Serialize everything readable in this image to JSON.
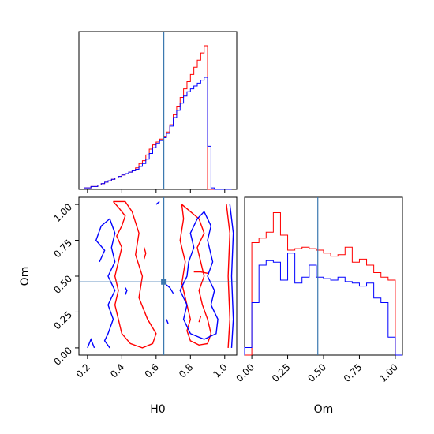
{
  "chart_data": [
    {
      "panel": "H0",
      "type": "step-histogram",
      "xlim": [
        0.15,
        1.07
      ],
      "bins": [
        0.18,
        0.2,
        0.22,
        0.24,
        0.26,
        0.28,
        0.3,
        0.32,
        0.34,
        0.36,
        0.38,
        0.4,
        0.42,
        0.44,
        0.46,
        0.48,
        0.5,
        0.52,
        0.54,
        0.56,
        0.58,
        0.6,
        0.62,
        0.64,
        0.66,
        0.68,
        0.7,
        0.72,
        0.74,
        0.76,
        0.78,
        0.8,
        0.82,
        0.84,
        0.86,
        0.88,
        0.9,
        0.92,
        0.94,
        0.96,
        0.98,
        1.0,
        1.02,
        1.04
      ],
      "series": [
        {
          "color": "#ff0000",
          "values": [
            0.01,
            0.01,
            0.02,
            0.02,
            0.03,
            0.04,
            0.05,
            0.06,
            0.07,
            0.08,
            0.09,
            0.1,
            0.11,
            0.12,
            0.13,
            0.15,
            0.18,
            0.2,
            0.24,
            0.28,
            0.31,
            0.33,
            0.35,
            0.37,
            0.4,
            0.45,
            0.52,
            0.58,
            0.64,
            0.7,
            0.75,
            0.8,
            0.85,
            0.9,
            0.95,
            1.0,
            0.0,
            0.0,
            0.0,
            0.0,
            0.0,
            0.0,
            0.0
          ]
        },
        {
          "color": "#0000ff",
          "values": [
            0.01,
            0.01,
            0.02,
            0.02,
            0.03,
            0.04,
            0.05,
            0.06,
            0.07,
            0.08,
            0.09,
            0.1,
            0.11,
            0.12,
            0.13,
            0.14,
            0.16,
            0.18,
            0.21,
            0.25,
            0.29,
            0.32,
            0.34,
            0.36,
            0.39,
            0.44,
            0.5,
            0.55,
            0.6,
            0.65,
            0.68,
            0.7,
            0.72,
            0.74,
            0.76,
            0.78,
            0.3,
            0.01,
            0.0,
            0.0,
            0.0,
            0.0,
            0.0
          ]
        }
      ],
      "truth": 0.645,
      "xticks": []
    },
    {
      "panel": "H0-Om",
      "type": "contour",
      "xlim": [
        0.15,
        1.07
      ],
      "ylim": [
        -0.05,
        1.05
      ],
      "xticks": [
        "0.2",
        "0.4",
        "0.6",
        "0.8",
        "1.0"
      ],
      "xtick_values": [
        0.2,
        0.4,
        0.6,
        0.8,
        1.0
      ],
      "yticks": [
        "0.00",
        "0.25",
        "0.50",
        "0.75",
        "1.00"
      ],
      "ytick_values": [
        0.0,
        0.25,
        0.5,
        0.75,
        1.0
      ],
      "xlabel": "H0",
      "ylabel": "Om",
      "truth": [
        0.645,
        0.46
      ],
      "series": [
        {
          "color": "#ff0000",
          "paths": [
            [
              [
                0.35,
                1.02
              ],
              [
                0.38,
                0.98
              ],
              [
                0.42,
                0.92
              ],
              [
                0.4,
                0.85
              ],
              [
                0.37,
                0.78
              ],
              [
                0.4,
                0.7
              ],
              [
                0.38,
                0.6
              ],
              [
                0.36,
                0.5
              ],
              [
                0.38,
                0.4
              ],
              [
                0.36,
                0.3
              ],
              [
                0.38,
                0.2
              ],
              [
                0.4,
                0.1
              ],
              [
                0.45,
                0.03
              ],
              [
                0.52,
                0.0
              ],
              [
                0.58,
                0.03
              ],
              [
                0.6,
                0.1
              ],
              [
                0.55,
                0.2
              ],
              [
                0.5,
                0.35
              ],
              [
                0.52,
                0.5
              ],
              [
                0.48,
                0.65
              ],
              [
                0.5,
                0.8
              ],
              [
                0.46,
                0.95
              ],
              [
                0.42,
                1.02
              ],
              [
                0.35,
                1.02
              ]
            ],
            [
              [
                0.75,
                1.0
              ],
              [
                0.8,
                0.95
              ],
              [
                0.85,
                0.9
              ],
              [
                0.88,
                0.8
              ],
              [
                0.84,
                0.7
              ],
              [
                0.86,
                0.6
              ],
              [
                0.88,
                0.5
              ],
              [
                0.85,
                0.4
              ],
              [
                0.87,
                0.3
              ],
              [
                0.9,
                0.2
              ],
              [
                0.92,
                0.1
              ],
              [
                0.9,
                0.03
              ],
              [
                0.85,
                0.02
              ],
              [
                0.8,
                0.05
              ],
              [
                0.78,
                0.12
              ],
              [
                0.8,
                0.2
              ],
              [
                0.78,
                0.3
              ],
              [
                0.75,
                0.45
              ],
              [
                0.77,
                0.6
              ],
              [
                0.74,
                0.75
              ],
              [
                0.76,
                0.9
              ],
              [
                0.75,
                1.0
              ]
            ],
            [
              [
                1.01,
                1.0
              ],
              [
                1.03,
                0.8
              ],
              [
                1.02,
                0.5
              ],
              [
                1.03,
                0.2
              ],
              [
                1.02,
                0.0
              ]
            ],
            [
              [
                0.53,
                0.7
              ],
              [
                0.54,
                0.66
              ],
              [
                0.53,
                0.62
              ]
            ],
            [
              [
                0.82,
                0.53
              ],
              [
                0.86,
                0.53
              ],
              [
                0.9,
                0.52
              ]
            ],
            [
              [
                0.85,
                0.18
              ],
              [
                0.86,
                0.22
              ]
            ]
          ]
        },
        {
          "color": "#0000ff",
          "paths": [
            [
              [
                0.27,
                0.6
              ],
              [
                0.3,
                0.68
              ],
              [
                0.25,
                0.75
              ],
              [
                0.28,
                0.85
              ],
              [
                0.33,
                0.9
              ],
              [
                0.36,
                0.8
              ],
              [
                0.34,
                0.7
              ],
              [
                0.36,
                0.6
              ],
              [
                0.32,
                0.5
              ],
              [
                0.36,
                0.4
              ],
              [
                0.32,
                0.3
              ],
              [
                0.35,
                0.2
              ],
              [
                0.32,
                0.1
              ],
              [
                0.3,
                0.05
              ],
              [
                0.33,
                0.0
              ]
            ],
            [
              [
                0.42,
                0.42
              ],
              [
                0.43,
                0.4
              ],
              [
                0.42,
                0.37
              ]
            ],
            [
              [
                0.6,
                1.0
              ],
              [
                0.62,
                1.02
              ]
            ],
            [
              [
                0.79,
                0.6
              ],
              [
                0.82,
                0.7
              ],
              [
                0.8,
                0.8
              ],
              [
                0.84,
                0.9
              ],
              [
                0.88,
                0.95
              ],
              [
                0.92,
                0.85
              ],
              [
                0.9,
                0.75
              ],
              [
                0.93,
                0.6
              ],
              [
                0.9,
                0.5
              ],
              [
                0.94,
                0.4
              ],
              [
                0.92,
                0.3
              ],
              [
                0.96,
                0.2
              ],
              [
                0.95,
                0.1
              ],
              [
                0.88,
                0.06
              ],
              [
                0.8,
                0.1
              ],
              [
                0.76,
                0.2
              ],
              [
                0.78,
                0.3
              ],
              [
                0.74,
                0.4
              ],
              [
                0.78,
                0.5
              ],
              [
                0.79,
                0.6
              ]
            ],
            [
              [
                1.03,
                1.0
              ],
              [
                1.05,
                0.8
              ],
              [
                1.04,
                0.5
              ],
              [
                1.05,
                0.2
              ],
              [
                1.04,
                0.0
              ]
            ],
            [
              [
                0.66,
                0.44
              ],
              [
                0.68,
                0.42
              ],
              [
                0.7,
                0.38
              ]
            ],
            [
              [
                0.66,
                0.2
              ],
              [
                0.67,
                0.17
              ]
            ],
            [
              [
                0.2,
                0.0
              ],
              [
                0.22,
                0.06
              ],
              [
                0.24,
                0.0
              ]
            ]
          ]
        }
      ]
    },
    {
      "panel": "Om",
      "type": "step-histogram",
      "xlim": [
        -0.05,
        1.05
      ],
      "xticks": [
        "0.00",
        "0.25",
        "0.50",
        "0.75",
        "1.00"
      ],
      "xtick_values": [
        0.0,
        0.25,
        0.5,
        0.75,
        1.0
      ],
      "xlabel": "Om",
      "truth": 0.46,
      "bins": [
        -0.05,
        0.0,
        0.05,
        0.1,
        0.15,
        0.2,
        0.25,
        0.3,
        0.35,
        0.4,
        0.45,
        0.5,
        0.55,
        0.6,
        0.65,
        0.7,
        0.75,
        0.8,
        0.85,
        0.9,
        0.95,
        1.0,
        1.05
      ],
      "series": [
        {
          "color": "#ff0000",
          "values": [
            0.0,
            0.75,
            0.78,
            0.82,
            0.95,
            0.8,
            0.7,
            0.71,
            0.72,
            0.71,
            0.7,
            0.68,
            0.66,
            0.67,
            0.72,
            0.62,
            0.64,
            0.6,
            0.55,
            0.52,
            0.5,
            0.0
          ]
        },
        {
          "color": "#0000ff",
          "values": [
            0.05,
            0.35,
            0.6,
            0.63,
            0.62,
            0.5,
            0.68,
            0.48,
            0.52,
            0.6,
            0.52,
            0.51,
            0.5,
            0.52,
            0.49,
            0.48,
            0.46,
            0.48,
            0.38,
            0.35,
            0.12,
            0.0
          ]
        }
      ]
    }
  ]
}
